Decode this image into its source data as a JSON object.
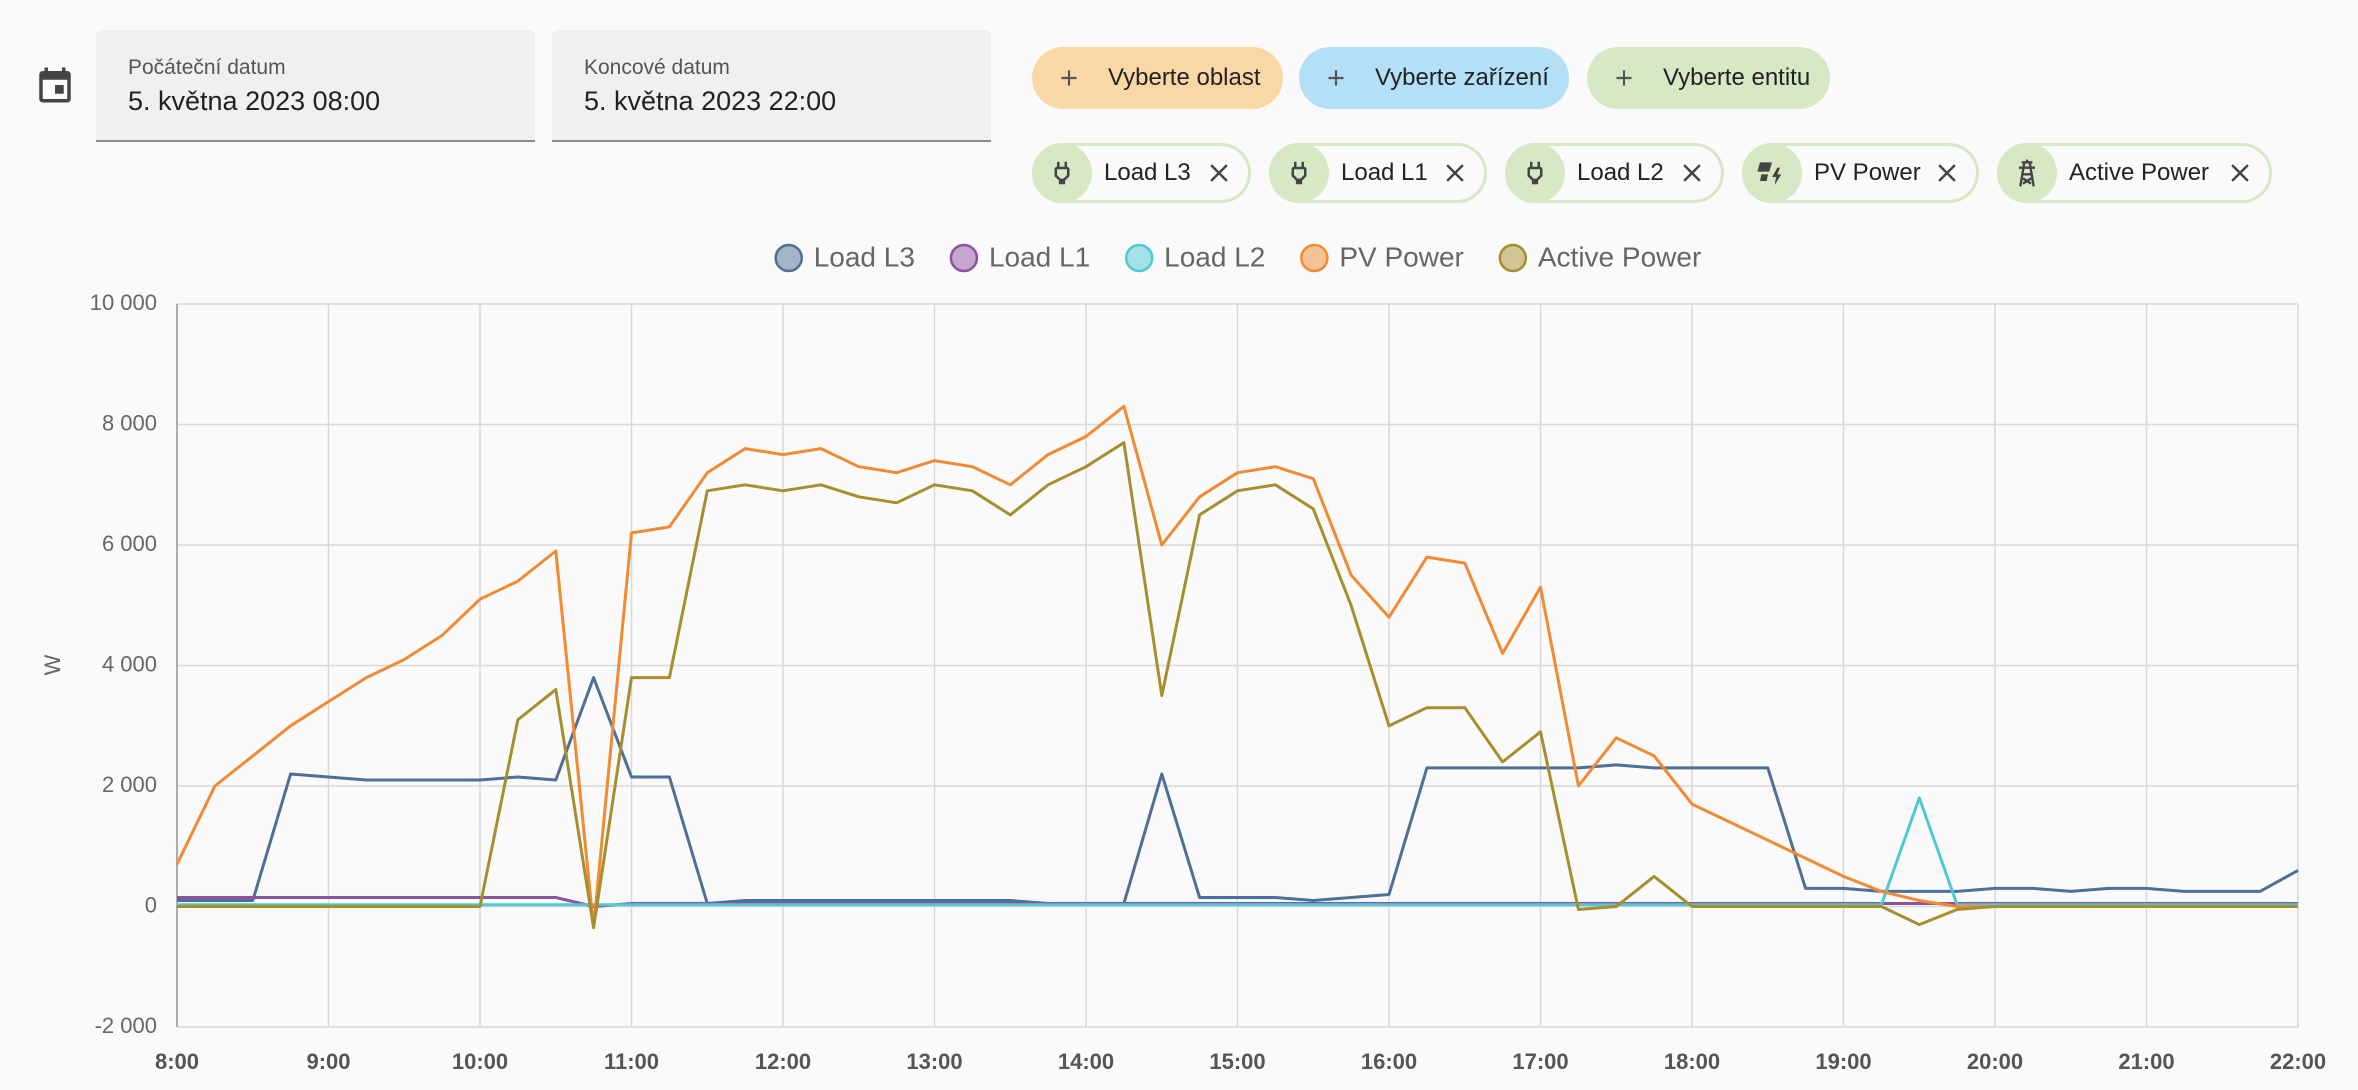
{
  "date_range": {
    "start_label": "Počáteční datum",
    "start_value": "5. května 2023 08:00",
    "end_label": "Koncové datum",
    "end_value": "5. května 2023 22:00"
  },
  "target_buttons": [
    "Vyberte oblast",
    "Vyberte zařízení",
    "Vyberte entitu"
  ],
  "selected_chips": [
    "Load L3",
    "Load L1",
    "Load L2",
    "PV Power",
    "Active Power"
  ],
  "chart_data": {
    "type": "line",
    "y_label": "W",
    "x": [
      8,
      8.25,
      8.5,
      8.75,
      9,
      9.25,
      9.5,
      9.75,
      10,
      10.25,
      10.5,
      10.75,
      11,
      11.25,
      11.5,
      11.75,
      12,
      12.25,
      12.5,
      12.75,
      13,
      13.25,
      13.5,
      13.75,
      14,
      14.25,
      14.5,
      14.75,
      15,
      15.25,
      15.5,
      15.75,
      16,
      16.25,
      16.5,
      16.75,
      17,
      17.25,
      17.5,
      17.75,
      18,
      18.25,
      18.5,
      18.75,
      19,
      19.25,
      19.5,
      19.75,
      20,
      20.25,
      20.5,
      20.75,
      21,
      21.25,
      21.5,
      21.75,
      22
    ],
    "xlim": [
      8,
      22
    ],
    "xticks": [
      {
        "value": 8,
        "label": "8:00"
      },
      {
        "value": 9,
        "label": "9:00"
      },
      {
        "value": 10,
        "label": "10:00"
      },
      {
        "value": 11,
        "label": "11:00"
      },
      {
        "value": 12,
        "label": "12:00"
      },
      {
        "value": 13,
        "label": "13:00"
      },
      {
        "value": 14,
        "label": "14:00"
      },
      {
        "value": 15,
        "label": "15:00"
      },
      {
        "value": 16,
        "label": "16:00"
      },
      {
        "value": 17,
        "label": "17:00"
      },
      {
        "value": 18,
        "label": "18:00"
      },
      {
        "value": 19,
        "label": "19:00"
      },
      {
        "value": 20,
        "label": "20:00"
      },
      {
        "value": 21,
        "label": "21:00"
      },
      {
        "value": 22,
        "label": "22:00"
      }
    ],
    "ylim": [
      -2000,
      10000
    ],
    "yticks": [
      {
        "value": -2000,
        "label": "-2 000"
      },
      0,
      {
        "value": 2000,
        "label": "2 000"
      },
      {
        "value": 4000,
        "label": "4 000"
      },
      {
        "value": 6000,
        "label": "6 000"
      },
      {
        "value": 8000,
        "label": "8 000"
      },
      {
        "value": 10000,
        "label": "10 000"
      }
    ],
    "grid": true,
    "series": [
      {
        "name": "Load L3",
        "color": "#4f6f96",
        "values": [
          100,
          100,
          100,
          2200,
          2150,
          2100,
          2100,
          2100,
          2100,
          2150,
          2100,
          3800,
          2150,
          2150,
          50,
          100,
          100,
          100,
          100,
          100,
          100,
          100,
          100,
          50,
          50,
          50,
          2200,
          150,
          150,
          150,
          100,
          150,
          200,
          2300,
          2300,
          2300,
          2300,
          2300,
          2350,
          2300,
          2300,
          2300,
          2300,
          300,
          300,
          250,
          250,
          250,
          300,
          300,
          250,
          300,
          300,
          250,
          250,
          250,
          600
        ]
      },
      {
        "name": "Load L1",
        "color": "#8e52a1",
        "values": [
          150,
          150,
          150,
          150,
          150,
          150,
          150,
          150,
          150,
          150,
          150,
          0,
          50,
          50,
          50,
          50,
          50,
          50,
          50,
          50,
          50,
          50,
          50,
          50,
          50,
          50,
          50,
          50,
          50,
          50,
          50,
          50,
          50,
          50,
          50,
          50,
          50,
          50,
          50,
          50,
          50,
          50,
          50,
          50,
          50,
          50,
          50,
          50,
          50,
          50,
          50,
          50,
          50,
          50,
          50,
          50,
          50
        ]
      },
      {
        "name": "Load L2",
        "color": "#4fc9d3",
        "values": [
          30,
          30,
          30,
          30,
          30,
          30,
          30,
          30,
          30,
          30,
          30,
          30,
          30,
          30,
          30,
          30,
          30,
          30,
          30,
          30,
          30,
          30,
          30,
          30,
          30,
          30,
          30,
          30,
          30,
          30,
          30,
          30,
          30,
          30,
          30,
          30,
          30,
          30,
          30,
          30,
          30,
          30,
          30,
          30,
          30,
          30,
          1800,
          30,
          30,
          30,
          30,
          30,
          30,
          30,
          30,
          30,
          30
        ]
      },
      {
        "name": "PV Power",
        "color": "#f08a35",
        "values": [
          700,
          2000,
          2500,
          3000,
          3400,
          3800,
          4100,
          4500,
          5100,
          5400,
          5900,
          -350,
          6200,
          6300,
          7200,
          7600,
          7500,
          7600,
          7300,
          7200,
          7400,
          7300,
          7000,
          7500,
          7800,
          8300,
          6000,
          6800,
          7200,
          7300,
          7100,
          5500,
          4800,
          5800,
          5700,
          4200,
          5300,
          2000,
          2800,
          2500,
          1700,
          1400,
          1100,
          800,
          500,
          250,
          100,
          0,
          0,
          0,
          0,
          0,
          0,
          0,
          0,
          0,
          0
        ]
      },
      {
        "name": "Active Power",
        "color": "#a68f2e",
        "values": [
          0,
          0,
          0,
          0,
          0,
          0,
          0,
          0,
          0,
          3100,
          3600,
          -350,
          3800,
          3800,
          6900,
          7000,
          6900,
          7000,
          6800,
          6700,
          7000,
          6900,
          6500,
          7000,
          7300,
          7700,
          3500,
          6500,
          6900,
          7000,
          6600,
          5000,
          3000,
          3300,
          3300,
          2400,
          2900,
          -50,
          0,
          500,
          0,
          0,
          0,
          0,
          0,
          0,
          -300,
          -50,
          0,
          0,
          0,
          0,
          0,
          0,
          0,
          0,
          0
        ]
      }
    ]
  }
}
